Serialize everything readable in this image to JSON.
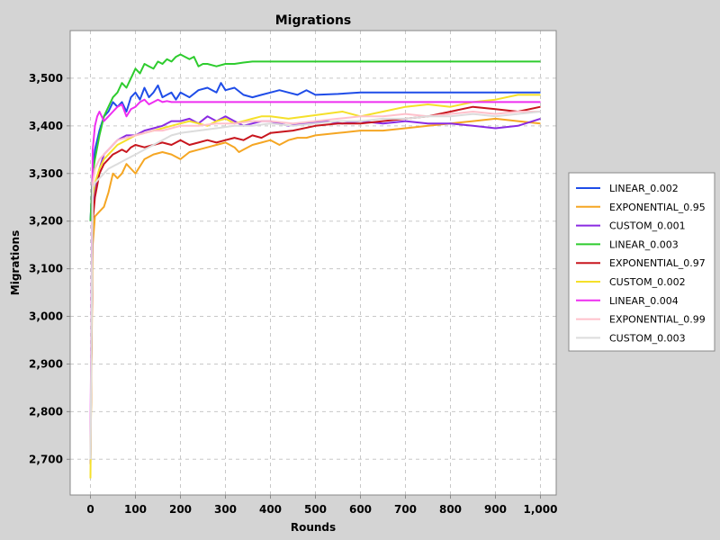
{
  "chart_data": {
    "type": "line",
    "title": "Migrations",
    "xlabel": "Rounds",
    "ylabel": "Migrations",
    "xlim": [
      -45,
      1035
    ],
    "ylim": [
      2625,
      3600
    ],
    "xticks": [
      0,
      100,
      200,
      300,
      400,
      500,
      600,
      700,
      800,
      900,
      1000
    ],
    "xtick_labels": [
      "0",
      "100",
      "200",
      "300",
      "400",
      "500",
      "600",
      "700",
      "800",
      "900",
      "1,000"
    ],
    "yticks": [
      2700,
      2800,
      2900,
      3000,
      3100,
      3200,
      3300,
      3400,
      3500
    ],
    "ytick_labels": [
      "2,700",
      "2,800",
      "2,900",
      "3,000",
      "3,100",
      "3,200",
      "3,300",
      "3,400",
      "3,500"
    ],
    "grid": true,
    "legend_position": "right",
    "background_color": "#d4d4d4",
    "plot_background_color": "#ffffff",
    "series": [
      {
        "name": "LINEAR_0.002",
        "color": "#1f4de8",
        "x": [
          0,
          5,
          10,
          20,
          30,
          40,
          50,
          60,
          70,
          80,
          90,
          100,
          110,
          120,
          130,
          140,
          150,
          160,
          170,
          180,
          190,
          200,
          220,
          240,
          260,
          280,
          290,
          300,
          320,
          340,
          360,
          380,
          400,
          420,
          440,
          460,
          480,
          500,
          550,
          600,
          700,
          800,
          900,
          1000
        ],
        "y": [
          3200,
          3300,
          3350,
          3390,
          3420,
          3430,
          3450,
          3440,
          3450,
          3430,
          3460,
          3470,
          3455,
          3480,
          3460,
          3470,
          3485,
          3460,
          3465,
          3470,
          3455,
          3470,
          3460,
          3475,
          3480,
          3470,
          3490,
          3475,
          3480,
          3465,
          3460,
          3465,
          3470,
          3475,
          3470,
          3465,
          3475,
          3465,
          3467,
          3470,
          3470,
          3470,
          3470,
          3470
        ]
      },
      {
        "name": "EXPONENTIAL_0.95",
        "color": "#f5a623",
        "x": [
          0,
          5,
          10,
          20,
          30,
          40,
          50,
          60,
          70,
          80,
          90,
          100,
          120,
          140,
          160,
          180,
          200,
          220,
          240,
          260,
          280,
          300,
          320,
          330,
          340,
          360,
          380,
          400,
          420,
          440,
          460,
          480,
          500,
          550,
          600,
          650,
          700,
          750,
          800,
          850,
          900,
          950,
          1000
        ],
        "y": [
          2690,
          3150,
          3210,
          3220,
          3230,
          3260,
          3300,
          3290,
          3300,
          3320,
          3310,
          3300,
          3330,
          3340,
          3345,
          3340,
          3330,
          3345,
          3350,
          3355,
          3360,
          3365,
          3355,
          3345,
          3350,
          3360,
          3365,
          3370,
          3360,
          3370,
          3375,
          3375,
          3380,
          3385,
          3390,
          3390,
          3395,
          3400,
          3405,
          3410,
          3415,
          3410,
          3405
        ]
      },
      {
        "name": "CUSTOM_0.001",
        "color": "#8a2be2",
        "x": [
          0,
          5,
          10,
          20,
          30,
          40,
          60,
          80,
          100,
          120,
          140,
          160,
          180,
          200,
          220,
          240,
          260,
          280,
          300,
          320,
          340,
          360,
          380,
          400,
          440,
          480,
          520,
          560,
          600,
          650,
          700,
          750,
          800,
          850,
          900,
          950,
          1000
        ],
        "y": [
          2690,
          3230,
          3270,
          3310,
          3340,
          3350,
          3370,
          3380,
          3380,
          3390,
          3395,
          3400,
          3410,
          3410,
          3415,
          3405,
          3420,
          3410,
          3420,
          3410,
          3400,
          3405,
          3410,
          3410,
          3400,
          3405,
          3410,
          3405,
          3410,
          3405,
          3410,
          3405,
          3405,
          3400,
          3395,
          3400,
          3415
        ]
      },
      {
        "name": "LINEAR_0.003",
        "color": "#2ecc2e",
        "x": [
          0,
          5,
          10,
          20,
          30,
          40,
          50,
          60,
          70,
          80,
          90,
          100,
          110,
          120,
          130,
          140,
          150,
          160,
          170,
          180,
          190,
          200,
          210,
          220,
          230,
          240,
          250,
          260,
          280,
          300,
          320,
          340,
          360,
          400,
          500,
          600,
          700,
          800,
          900,
          1000
        ],
        "y": [
          3200,
          3300,
          3330,
          3380,
          3420,
          3440,
          3460,
          3470,
          3490,
          3480,
          3500,
          3520,
          3510,
          3530,
          3525,
          3520,
          3535,
          3530,
          3540,
          3535,
          3545,
          3550,
          3545,
          3540,
          3545,
          3525,
          3530,
          3530,
          3525,
          3530,
          3530,
          3533,
          3535,
          3535,
          3535,
          3535,
          3535,
          3535,
          3535,
          3535
        ]
      },
      {
        "name": "EXPONENTIAL_0.97",
        "color": "#c8161e",
        "x": [
          0,
          5,
          10,
          20,
          30,
          40,
          50,
          60,
          70,
          80,
          90,
          100,
          120,
          140,
          160,
          180,
          200,
          220,
          240,
          260,
          280,
          300,
          320,
          340,
          360,
          380,
          400,
          450,
          500,
          550,
          600,
          650,
          700,
          750,
          800,
          850,
          900,
          950,
          1000
        ],
        "y": [
          2700,
          3200,
          3250,
          3300,
          3320,
          3330,
          3340,
          3345,
          3350,
          3345,
          3355,
          3360,
          3355,
          3360,
          3365,
          3360,
          3370,
          3360,
          3365,
          3370,
          3365,
          3370,
          3375,
          3370,
          3380,
          3375,
          3385,
          3390,
          3400,
          3405,
          3405,
          3410,
          3415,
          3420,
          3430,
          3440,
          3435,
          3430,
          3440
        ]
      },
      {
        "name": "CUSTOM_0.002",
        "color": "#f5e02a",
        "x": [
          0,
          5,
          10,
          20,
          30,
          40,
          60,
          80,
          100,
          120,
          140,
          160,
          180,
          200,
          220,
          240,
          260,
          280,
          300,
          320,
          340,
          360,
          380,
          400,
          440,
          480,
          520,
          560,
          600,
          650,
          700,
          750,
          800,
          850,
          900,
          950,
          1000
        ],
        "y": [
          2660,
          3250,
          3280,
          3310,
          3330,
          3340,
          3360,
          3370,
          3380,
          3385,
          3390,
          3395,
          3400,
          3405,
          3410,
          3405,
          3400,
          3410,
          3415,
          3405,
          3410,
          3415,
          3420,
          3420,
          3415,
          3420,
          3425,
          3430,
          3420,
          3430,
          3440,
          3445,
          3440,
          3450,
          3455,
          3465,
          3465
        ]
      },
      {
        "name": "LINEAR_0.004",
        "color": "#ee2ef0",
        "x": [
          0,
          5,
          10,
          15,
          20,
          30,
          40,
          50,
          60,
          70,
          80,
          90,
          100,
          110,
          120,
          130,
          140,
          150,
          160,
          170,
          180,
          200,
          220,
          240,
          260,
          280,
          300,
          400,
          500,
          600,
          700,
          800,
          900,
          1000
        ],
        "y": [
          2750,
          3350,
          3400,
          3420,
          3430,
          3410,
          3420,
          3430,
          3440,
          3445,
          3420,
          3435,
          3440,
          3450,
          3455,
          3445,
          3450,
          3455,
          3450,
          3452,
          3450,
          3450,
          3450,
          3450,
          3450,
          3450,
          3450,
          3450,
          3450,
          3450,
          3450,
          3450,
          3450,
          3450
        ]
      },
      {
        "name": "EXPONENTIAL_0.99",
        "color": "#ffc0cb",
        "x": [
          0,
          5,
          10,
          20,
          30,
          40,
          60,
          80,
          100,
          120,
          140,
          160,
          180,
          200,
          240,
          280,
          320,
          360,
          400,
          450,
          500,
          550,
          600,
          650,
          700,
          750,
          800,
          850,
          900,
          950,
          1000
        ],
        "y": [
          2700,
          3280,
          3310,
          3330,
          3340,
          3350,
          3370,
          3375,
          3380,
          3385,
          3390,
          3390,
          3395,
          3400,
          3400,
          3405,
          3405,
          3410,
          3410,
          3405,
          3410,
          3415,
          3420,
          3420,
          3425,
          3420,
          3425,
          3430,
          3425,
          3430,
          3430
        ]
      },
      {
        "name": "CUSTOM_0.003",
        "color": "#dcdcdc",
        "x": [
          0,
          5,
          10,
          20,
          30,
          40,
          60,
          80,
          100,
          120,
          140,
          160,
          180,
          200,
          240,
          280,
          320,
          360,
          400,
          450,
          500,
          550,
          600,
          650,
          700,
          750,
          800,
          850,
          900,
          950,
          1000
        ],
        "y": [
          2700,
          3270,
          3280,
          3290,
          3300,
          3310,
          3320,
          3330,
          3340,
          3350,
          3360,
          3370,
          3380,
          3385,
          3390,
          3395,
          3400,
          3400,
          3405,
          3400,
          3405,
          3410,
          3410,
          3415,
          3415,
          3420,
          3420,
          3425,
          3420,
          3425,
          3430
        ]
      }
    ]
  }
}
